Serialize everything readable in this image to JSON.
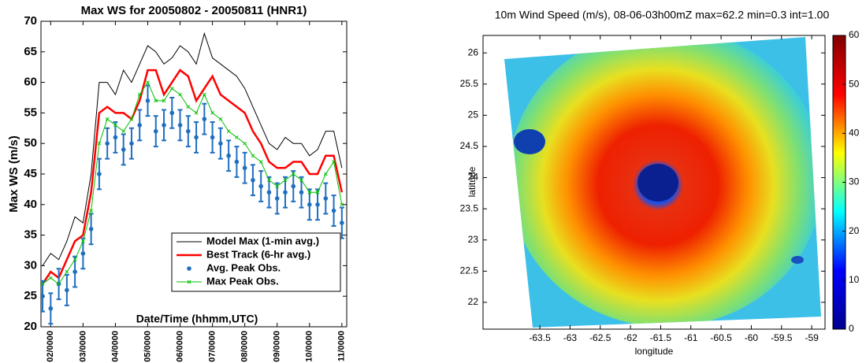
{
  "chart_data": [
    {
      "type": "line",
      "title": "Max WS for 20050802 - 20050811 (HNR1)",
      "ylabel": "Max WS (m/s)",
      "xlabel": "Date/Time (hhmm,UTC)",
      "x": [
        1.75,
        2.0,
        2.25,
        2.5,
        2.75,
        3.0,
        3.25,
        3.5,
        3.75,
        4.0,
        4.25,
        4.5,
        4.75,
        5.0,
        5.25,
        5.5,
        5.75,
        6.0,
        6.25,
        6.5,
        6.75,
        7.0,
        7.25,
        7.5,
        7.75,
        8.0,
        8.25,
        8.5,
        8.75,
        9.0,
        9.25,
        9.5,
        9.75,
        10.0,
        10.25,
        10.5,
        10.75,
        11.0
      ],
      "xlim": [
        1.7,
        11.15
      ],
      "xticks": [
        {
          "value": 2,
          "label": "02/0000"
        },
        {
          "value": 3,
          "label": "03/0000"
        },
        {
          "value": 4,
          "label": "04/0000"
        },
        {
          "value": 5,
          "label": "05/0000"
        },
        {
          "value": 6,
          "label": "06/0000"
        },
        {
          "value": 7,
          "label": "07/0000"
        },
        {
          "value": 8,
          "label": "08/0000"
        },
        {
          "value": 9,
          "label": "09/0000"
        },
        {
          "value": 10,
          "label": "10/0000"
        },
        {
          "value": 11,
          "label": "11/0000"
        }
      ],
      "ylim": [
        20,
        70
      ],
      "yticks": [
        20,
        25,
        30,
        35,
        40,
        45,
        50,
        55,
        60,
        65,
        70
      ],
      "legend": "lower right",
      "series": [
        {
          "name": "Model Max (1-min avg.)",
          "color": "#000000",
          "style": "line",
          "values": [
            30,
            32,
            31,
            34,
            38,
            37,
            45,
            60,
            60,
            58,
            62,
            60,
            63,
            66,
            65,
            63,
            64,
            66,
            65,
            63,
            68,
            64,
            63,
            62,
            61,
            59,
            56,
            53,
            50,
            49,
            51,
            50,
            50,
            48,
            49,
            52,
            52,
            46
          ]
        },
        {
          "name": "Best Track (6-hr avg.)",
          "color": "#ff0000",
          "style": "line",
          "values": [
            27,
            29,
            28,
            31,
            34,
            35,
            42,
            55,
            56,
            55,
            55,
            54,
            57,
            62,
            62,
            58,
            60,
            62,
            61,
            57,
            59,
            61,
            58,
            57,
            56,
            55,
            52,
            50,
            47,
            46,
            46,
            47,
            47,
            45,
            45,
            48,
            48,
            42
          ]
        },
        {
          "name": "Avg. Peak Obs.",
          "color": "#1f6fc0",
          "style": "errorbar",
          "error": 2.5,
          "values": [
            25,
            23,
            27,
            26,
            29,
            32,
            36,
            45,
            50,
            51,
            49,
            50,
            53,
            57,
            52,
            53,
            55,
            53,
            52,
            51,
            54,
            51,
            50,
            48,
            47,
            46,
            44,
            43,
            42,
            41,
            42,
            43,
            42,
            40,
            40,
            41,
            39,
            37
          ]
        },
        {
          "name": "Max Peak Obs.",
          "color": "#00c000",
          "style": "line-x",
          "values": [
            27,
            28,
            27,
            29,
            31,
            34,
            39,
            50,
            54,
            53,
            52,
            54,
            58,
            60,
            57,
            57,
            59,
            58,
            56,
            55,
            58,
            55,
            54,
            52,
            51,
            50,
            48,
            47,
            44,
            43,
            44,
            45,
            44,
            42,
            42,
            45,
            47,
            40
          ]
        }
      ]
    },
    {
      "type": "heatmap",
      "title": "10m Wind Speed (m/s), 08-06-03h00mZ max=62.2 min=0.3 int=1.00",
      "xlabel": "longitude",
      "ylabel": "latitude",
      "xlim": [
        -64.44,
        -58.78
      ],
      "xticks": [
        -63.5,
        -63,
        -62.5,
        -62,
        -61.5,
        -61,
        -60.5,
        -60,
        -59.5,
        -59
      ],
      "ylim": [
        21.57,
        26.28
      ],
      "yticks": [
        22,
        22.5,
        23,
        23.5,
        24,
        24.5,
        25,
        25.5,
        26
      ],
      "colorbar": {
        "lim": [
          0,
          60
        ],
        "ticks": [
          0,
          10,
          20,
          30,
          40,
          50,
          60
        ],
        "colormap": [
          "#00008f",
          "#0000ff",
          "#00ffff",
          "#ffff00",
          "#ff0000",
          "#800000"
        ]
      }
    }
  ]
}
